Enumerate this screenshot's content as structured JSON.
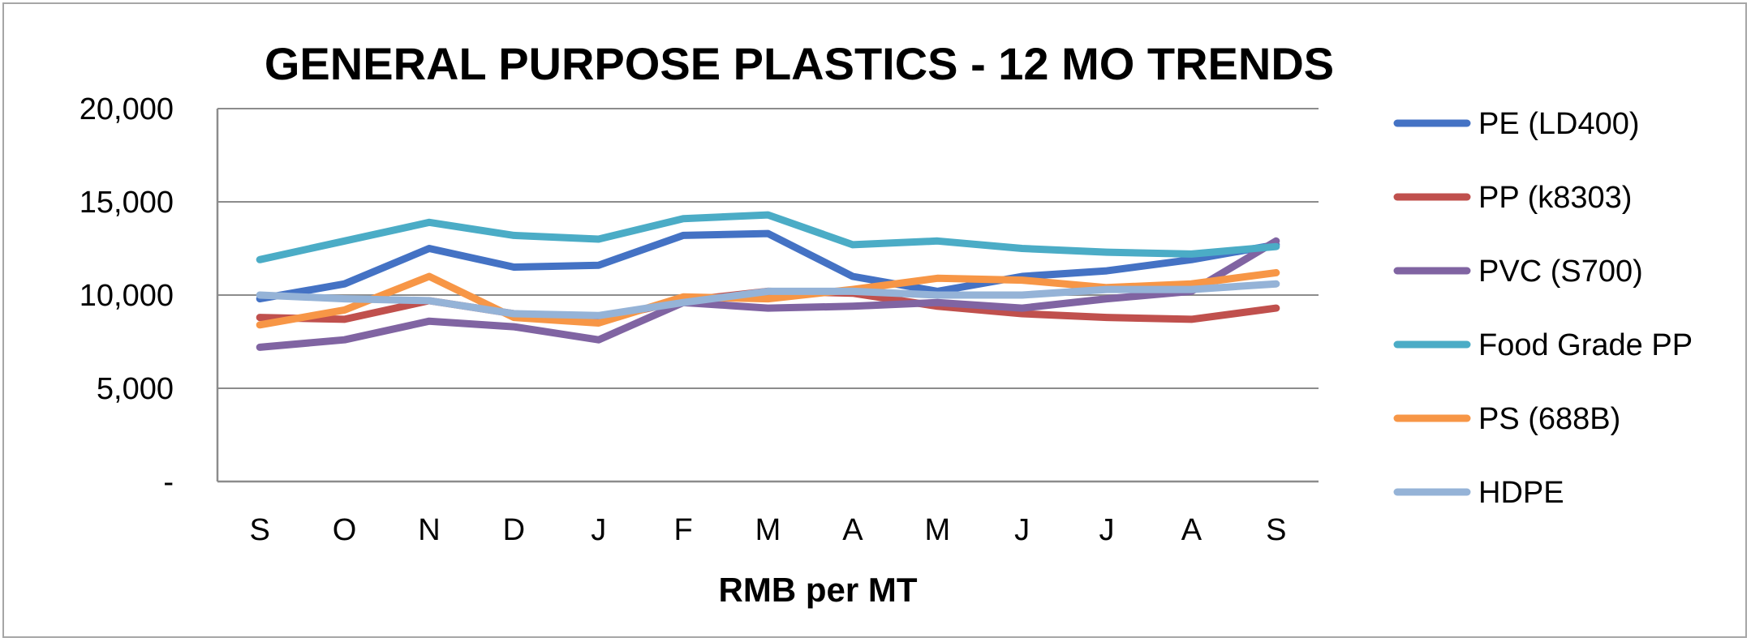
{
  "chart_data": {
    "type": "line",
    "title": "GENERAL PURPOSE PLASTICS - 12 MO TRENDS",
    "xlabel": "RMB per MT",
    "ylabel": "",
    "ylim": [
      0,
      20000
    ],
    "yticks": [
      0,
      5000,
      10000,
      15000,
      20000
    ],
    "ytick_labels": [
      "-",
      "5,000",
      "10,000",
      "15,000",
      "20,000"
    ],
    "categories": [
      "S",
      "O",
      "N",
      "D",
      "J",
      "F",
      "M",
      "A",
      "M",
      "J",
      "J",
      "A",
      "S"
    ],
    "grid": true,
    "legend_position": "right",
    "series": [
      {
        "name": "PE (LD400)",
        "color": "#4472c4",
        "values": [
          9800,
          10600,
          12500,
          11500,
          11600,
          13200,
          13300,
          11000,
          10200,
          11000,
          11300,
          11900,
          12700
        ]
      },
      {
        "name": "PP (k8303)",
        "color": "#c0504d",
        "values": [
          8800,
          8700,
          9700,
          9000,
          8700,
          9700,
          10200,
          10100,
          9400,
          9000,
          8800,
          8700,
          9300
        ]
      },
      {
        "name": "PVC (S700)",
        "color": "#8064a2",
        "values": [
          7200,
          7600,
          8600,
          8300,
          7600,
          9600,
          9300,
          9400,
          9600,
          9300,
          9800,
          10200,
          12900
        ]
      },
      {
        "name": "Food Grade PP",
        "color": "#4bacc6",
        "values": [
          11900,
          12900,
          13900,
          13200,
          13000,
          14100,
          14300,
          12700,
          12900,
          12500,
          12300,
          12200,
          12600
        ]
      },
      {
        "name": "PS (688B)",
        "color": "#f79646",
        "values": [
          8400,
          9200,
          11000,
          8800,
          8500,
          9900,
          9800,
          10300,
          10900,
          10800,
          10400,
          10600,
          11200
        ]
      },
      {
        "name": "HDPE",
        "color": "#95b3d7",
        "values": [
          10000,
          9800,
          9700,
          9000,
          8900,
          9600,
          10200,
          10200,
          10000,
          10000,
          10300,
          10300,
          10600
        ]
      }
    ]
  }
}
